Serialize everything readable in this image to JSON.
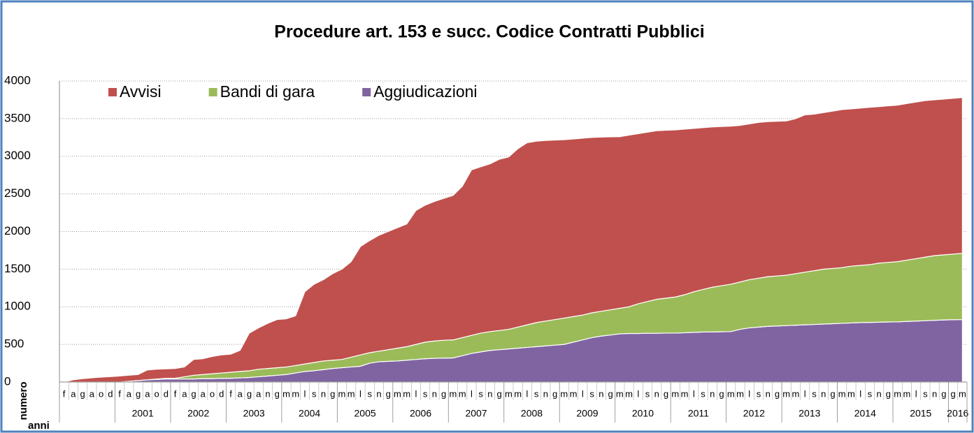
{
  "chart_data": {
    "type": "stacked_area",
    "title": "Procedure art. 153 e succ. Codice Contratti Pubblici",
    "y_label": "numero",
    "x_label": "anni",
    "categories": [
      "f",
      "a",
      "g",
      "a",
      "o",
      "d",
      "f",
      "a",
      "g",
      "a",
      "o",
      "d",
      "f",
      "a",
      "g",
      "a",
      "o",
      "d",
      "f",
      "a",
      "g",
      "a",
      "n",
      "g",
      "m",
      "m",
      "l",
      "s",
      "n",
      "g",
      "m",
      "m",
      "l",
      "s",
      "n",
      "g",
      "m",
      "m",
      "l",
      "s",
      "n",
      "g",
      "m",
      "m",
      "l",
      "s",
      "n",
      "g",
      "m",
      "m",
      "l",
      "s",
      "n",
      "g",
      "m",
      "m",
      "l",
      "s",
      "n",
      "g",
      "m",
      "m",
      "l",
      "s",
      "n",
      "g",
      "m",
      "m",
      "l",
      "s",
      "n",
      "g",
      "m",
      "m",
      "l",
      "s",
      "n",
      "g",
      "m",
      "m",
      "l",
      "s",
      "n",
      "g",
      "m",
      "m",
      "l",
      "s",
      "n",
      "g",
      "m",
      "m",
      "l",
      "s",
      "n",
      "g",
      "g",
      "m"
    ],
    "year_labels": [
      null,
      "2001",
      "2002",
      "2003",
      "2004",
      "2005",
      "2006",
      "2007",
      "2008",
      "2009",
      "2010",
      "2011",
      "2012",
      "2013",
      "2014",
      "2015",
      "2016"
    ],
    "series": [
      {
        "name": "Avvisi",
        "color": "#c0504d",
        "values": [
          0,
          30,
          45,
          55,
          65,
          72,
          80,
          80,
          80,
          130,
          130,
          125,
          130,
          130,
          210,
          210,
          230,
          240,
          240,
          280,
          500,
          550,
          600,
          640,
          640,
          660,
          960,
          1040,
          1080,
          1150,
          1200,
          1270,
          1440,
          1490,
          1540,
          1570,
          1600,
          1630,
          1780,
          1820,
          1855,
          1885,
          1920,
          2010,
          2200,
          2210,
          2230,
          2275,
          2290,
          2370,
          2420,
          2410,
          2400,
          2385,
          2370,
          2360,
          2350,
          2330,
          2315,
          2298,
          2280,
          2280,
          2260,
          2250,
          2240,
          2230,
          2220,
          2200,
          2170,
          2150,
          2130,
          2115,
          2100,
          2080,
          2070,
          2070,
          2060,
          2055,
          2050,
          2060,
          2090,
          2080,
          2080,
          2090,
          2100,
          2090,
          2090,
          2090,
          2080,
          2080,
          2080,
          2080,
          2080,
          2080,
          2070,
          2070,
          2070,
          2070
        ]
      },
      {
        "name": "Bandi di gara",
        "color": "#9bbb59",
        "values": [
          0,
          0,
          0,
          0,
          0,
          0,
          0,
          0,
          0,
          0,
          5,
          10,
          10,
          30,
          50,
          55,
          65,
          70,
          80,
          85,
          90,
          100,
          100,
          100,
          100,
          100,
          100,
          110,
          115,
          110,
          110,
          130,
          150,
          140,
          140,
          155,
          170,
          180,
          200,
          220,
          230,
          237,
          240,
          240,
          240,
          250,
          250,
          255,
          260,
          280,
          300,
          320,
          330,
          340,
          350,
          340,
          330,
          330,
          330,
          335,
          340,
          355,
          395,
          422,
          452,
          465,
          480,
          505,
          540,
          565,
          595,
          612,
          630,
          630,
          640,
          650,
          660,
          665,
          670,
          685,
          700,
          715,
          730,
          735,
          740,
          755,
          760,
          768,
          785,
          792,
          800,
          815,
          830,
          845,
          860,
          865,
          872,
          880
        ]
      },
      {
        "name": "Aggiudicazioni",
        "color": "#8064a2",
        "values": [
          0,
          0,
          0,
          0,
          0,
          0,
          0,
          10,
          20,
          30,
          35,
          40,
          40,
          40,
          40,
          45,
          45,
          50,
          50,
          55,
          60,
          70,
          80,
          90,
          100,
          120,
          140,
          150,
          165,
          180,
          190,
          200,
          210,
          250,
          270,
          275,
          280,
          290,
          300,
          310,
          315,
          318,
          320,
          350,
          380,
          400,
          420,
          430,
          440,
          450,
          460,
          470,
          480,
          490,
          500,
          530,
          560,
          590,
          610,
          625,
          640,
          645,
          645,
          648,
          648,
          650,
          650,
          655,
          660,
          665,
          665,
          668,
          670,
          700,
          720,
          730,
          740,
          745,
          750,
          755,
          760,
          765,
          770,
          775,
          780,
          785,
          790,
          792,
          795,
          798,
          800,
          805,
          810,
          815,
          820,
          825,
          828,
          830
        ]
      }
    ],
    "ylim": [
      0,
      4000
    ],
    "yticks": [
      0,
      500,
      1000,
      1500,
      2000,
      2500,
      3000,
      3500,
      4000
    ],
    "grid": true,
    "legend": "top-left"
  }
}
